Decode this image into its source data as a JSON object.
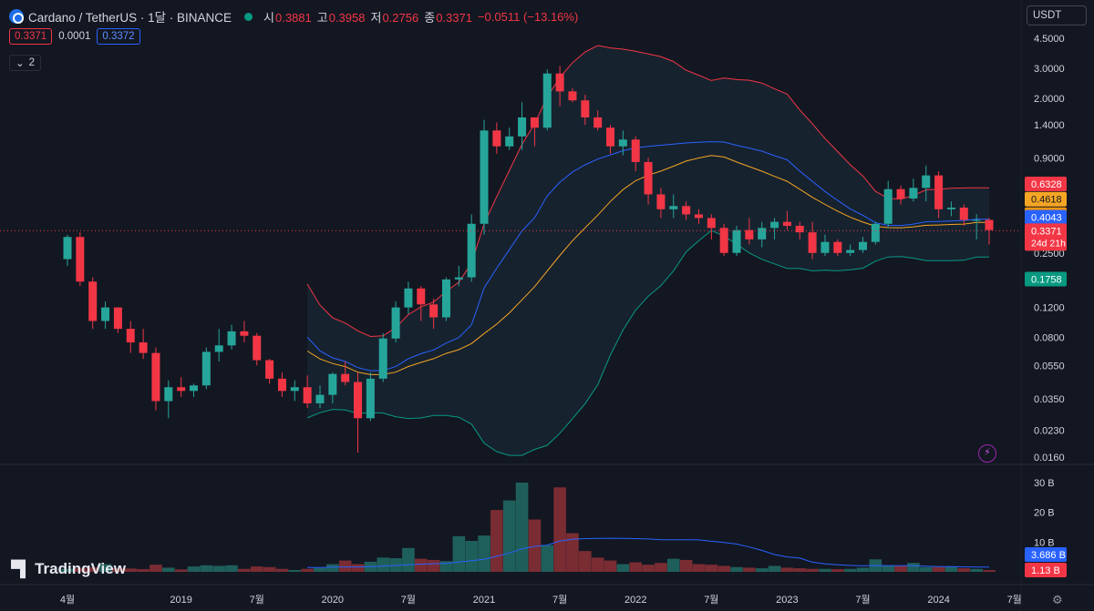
{
  "header": {
    "title": "Cardano / TetherUS · 1달 · BINANCE",
    "ohlc": [
      {
        "key": "시",
        "value": "0.3881"
      },
      {
        "key": "고",
        "value": "0.3958"
      },
      {
        "key": "저",
        "value": "0.2756"
      },
      {
        "key": "종",
        "value": "0.3371"
      }
    ],
    "change": "−0.0511 (−13.16%)"
  },
  "order_pills": {
    "bid": "0.3371",
    "spread": "0.0001",
    "ask": "0.3372"
  },
  "indicators_count": "2",
  "currency_button": "USDT",
  "watermark": "TradingView",
  "chart_data": {
    "type": "candlestick",
    "interval": "1M",
    "price_scale": "log",
    "price_ticks": [
      "4.5000",
      "3.0000",
      "2.0000",
      "1.4000",
      "0.9000",
      "0.2500",
      "0.1200",
      "0.0800",
      "0.0550",
      "0.0350",
      "0.0230",
      "0.0160"
    ],
    "volume_ticks": [
      "30 B",
      "20 B",
      "10 B"
    ],
    "time_ticks": [
      "4월",
      "2019",
      "7월",
      "2020",
      "7월",
      "2021",
      "7월",
      "2022",
      "7월",
      "2023",
      "7월",
      "2024",
      "7월"
    ],
    "last_price": "0.3371",
    "countdown": "24d 21h",
    "price_badges": [
      {
        "label": "0.6328",
        "color": "#f23645"
      },
      {
        "label": "0.4618",
        "color": "#f5a623"
      },
      {
        "label": "0.4618",
        "color": "#ff9800"
      },
      {
        "label": "0.4043",
        "color": "#2962ff"
      },
      {
        "label": "0.1758",
        "color": "#089981"
      }
    ],
    "volume_badges": [
      {
        "label": "3.686 B",
        "color": "#2962ff"
      },
      {
        "label": "1.13 B",
        "color": "#f23645"
      }
    ],
    "candles": [
      [
        0.23,
        0.31,
        0.32,
        0.21
      ],
      [
        0.31,
        0.17,
        0.33,
        0.16
      ],
      [
        0.17,
        0.1,
        0.18,
        0.09
      ],
      [
        0.1,
        0.12,
        0.13,
        0.09
      ],
      [
        0.12,
        0.09,
        0.12,
        0.085
      ],
      [
        0.09,
        0.075,
        0.1,
        0.065
      ],
      [
        0.075,
        0.065,
        0.09,
        0.06
      ],
      [
        0.065,
        0.034,
        0.07,
        0.03
      ],
      [
        0.034,
        0.041,
        0.045,
        0.027
      ],
      [
        0.041,
        0.039,
        0.047,
        0.036
      ],
      [
        0.039,
        0.042,
        0.043,
        0.036
      ],
      [
        0.042,
        0.066,
        0.07,
        0.04
      ],
      [
        0.066,
        0.072,
        0.09,
        0.058
      ],
      [
        0.072,
        0.087,
        0.095,
        0.068
      ],
      [
        0.087,
        0.082,
        0.1,
        0.075
      ],
      [
        0.082,
        0.059,
        0.085,
        0.055
      ],
      [
        0.059,
        0.046,
        0.06,
        0.043
      ],
      [
        0.046,
        0.039,
        0.05,
        0.036
      ],
      [
        0.039,
        0.041,
        0.045,
        0.034
      ],
      [
        0.041,
        0.033,
        0.048,
        0.031
      ],
      [
        0.033,
        0.037,
        0.042,
        0.031
      ],
      [
        0.037,
        0.049,
        0.05,
        0.033
      ],
      [
        0.049,
        0.044,
        0.058,
        0.042
      ],
      [
        0.044,
        0.027,
        0.05,
        0.017
      ],
      [
        0.027,
        0.046,
        0.05,
        0.026
      ],
      [
        0.046,
        0.079,
        0.085,
        0.044
      ],
      [
        0.079,
        0.12,
        0.13,
        0.075
      ],
      [
        0.12,
        0.155,
        0.17,
        0.11
      ],
      [
        0.155,
        0.125,
        0.16,
        0.1
      ],
      [
        0.125,
        0.105,
        0.135,
        0.09
      ],
      [
        0.105,
        0.175,
        0.18,
        0.1
      ],
      [
        0.175,
        0.18,
        0.21,
        0.16
      ],
      [
        0.18,
        0.37,
        0.42,
        0.17
      ],
      [
        0.37,
        1.3,
        1.5,
        0.32
      ],
      [
        1.3,
        1.05,
        1.45,
        0.95
      ],
      [
        1.05,
        1.2,
        1.35,
        1.0
      ],
      [
        1.2,
        1.55,
        1.9,
        1.0
      ],
      [
        1.55,
        1.35,
        1.55,
        1.05
      ],
      [
        1.35,
        2.8,
        2.95,
        1.3
      ],
      [
        2.8,
        2.2,
        3.1,
        1.8
      ],
      [
        2.2,
        1.95,
        2.3,
        1.9
      ],
      [
        1.95,
        1.55,
        2.1,
        1.4
      ],
      [
        1.55,
        1.35,
        1.7,
        1.3
      ],
      [
        1.35,
        1.05,
        1.4,
        0.95
      ],
      [
        1.05,
        1.15,
        1.3,
        0.93
      ],
      [
        1.15,
        0.85,
        1.2,
        0.75
      ],
      [
        0.85,
        0.55,
        0.9,
        0.48
      ],
      [
        0.55,
        0.45,
        0.6,
        0.4
      ],
      [
        0.45,
        0.47,
        0.55,
        0.4
      ],
      [
        0.47,
        0.42,
        0.5,
        0.39
      ],
      [
        0.42,
        0.4,
        0.45,
        0.37
      ],
      [
        0.4,
        0.35,
        0.42,
        0.3
      ],
      [
        0.35,
        0.25,
        0.37,
        0.24
      ],
      [
        0.25,
        0.34,
        0.36,
        0.24
      ],
      [
        0.34,
        0.3,
        0.4,
        0.28
      ],
      [
        0.3,
        0.35,
        0.38,
        0.27
      ],
      [
        0.35,
        0.38,
        0.4,
        0.3
      ],
      [
        0.38,
        0.36,
        0.44,
        0.34
      ],
      [
        0.36,
        0.33,
        0.38,
        0.3
      ],
      [
        0.33,
        0.25,
        0.38,
        0.23
      ],
      [
        0.25,
        0.29,
        0.32,
        0.24
      ],
      [
        0.29,
        0.25,
        0.3,
        0.24
      ],
      [
        0.25,
        0.26,
        0.28,
        0.24
      ],
      [
        0.26,
        0.29,
        0.31,
        0.25
      ],
      [
        0.29,
        0.37,
        0.38,
        0.28
      ],
      [
        0.37,
        0.59,
        0.66,
        0.35
      ],
      [
        0.59,
        0.52,
        0.62,
        0.48
      ],
      [
        0.52,
        0.6,
        0.68,
        0.5
      ],
      [
        0.6,
        0.71,
        0.81,
        0.5
      ],
      [
        0.71,
        0.45,
        0.75,
        0.4
      ],
      [
        0.45,
        0.46,
        0.5,
        0.41
      ],
      [
        0.46,
        0.39,
        0.48,
        0.36
      ],
      [
        0.39,
        0.39,
        0.42,
        0.3
      ],
      [
        0.39,
        0.34,
        0.4,
        0.28
      ]
    ],
    "volumes_b": [
      1.0,
      1.2,
      1.5,
      2.6,
      1.2,
      1.1,
      0.9,
      2.4,
      1.4,
      0.8,
      1.8,
      2.2,
      2.0,
      2.2,
      1.0,
      1.8,
      1.6,
      1.0,
      0.6,
      1.0,
      1.3,
      2.6,
      3.8,
      2.6,
      3.4,
      4.8,
      4.6,
      8.0,
      4.4,
      4.0,
      3.6,
      12.0,
      10.4,
      12.2,
      20.8,
      24.0,
      30.0,
      17.6,
      9.0,
      28.4,
      13.0,
      7.0,
      4.8,
      3.8,
      2.6,
      3.2,
      2.4,
      3.0,
      4.4,
      4.0,
      2.6,
      2.4,
      2.0,
      1.6,
      1.4,
      1.2,
      2.0,
      1.4,
      1.2,
      1.0,
      1.0,
      0.9,
      1.0,
      1.4,
      4.2,
      2.2,
      2.0,
      3.0,
      1.6,
      1.6,
      1.8,
      1.2,
      1.0,
      0.6
    ],
    "series": [
      {
        "name": "bb_upper",
        "color": "#f23645"
      },
      {
        "name": "bb_basis",
        "color": "#f5a623"
      },
      {
        "name": "bb_lower",
        "color": "#089981"
      },
      {
        "name": "ma",
        "color": "#2962ff"
      }
    ]
  }
}
